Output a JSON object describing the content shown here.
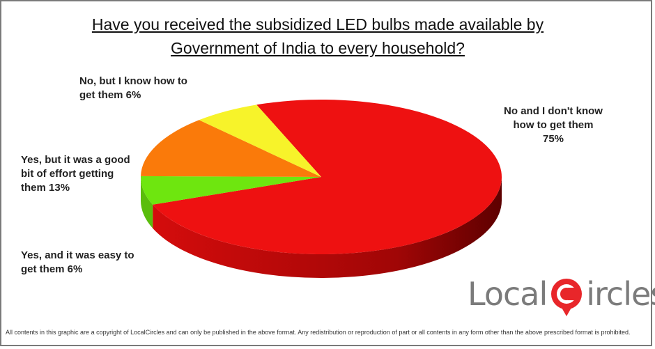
{
  "title_lines": [
    "Have you received the subsidized LED bulbs made available by",
    "Government of India to every household?"
  ],
  "chart_data": {
    "type": "pie",
    "title": "Have you received the subsidized LED bulbs made available by Government of India to every household?",
    "slices": [
      {
        "label_lines": [
          "No and I don't know",
          "how to get them",
          "75%"
        ],
        "value": 75,
        "color": "#ee1111"
      },
      {
        "label_lines": [
          "Yes, and it was easy to",
          "get them  6%"
        ],
        "value": 6,
        "color": "#6ee60f"
      },
      {
        "label_lines": [
          "Yes, but it was a good",
          "bit of effort getting",
          "them  13%"
        ],
        "value": 13,
        "color": "#fa7a0a"
      },
      {
        "label_lines": [
          "No, but I know how to",
          "get them 6%"
        ],
        "value": 6,
        "color": "#f7f32a"
      }
    ]
  },
  "logo": {
    "text_left": "Local",
    "text_right": "ircles",
    "accent": "#e8262a"
  },
  "footer": "All contents in this graphic are a copyright of LocalCircles and can only be published in the above format. Any redistribution or reproduction of part or all contents in any form other than the above prescribed format is prohibited."
}
